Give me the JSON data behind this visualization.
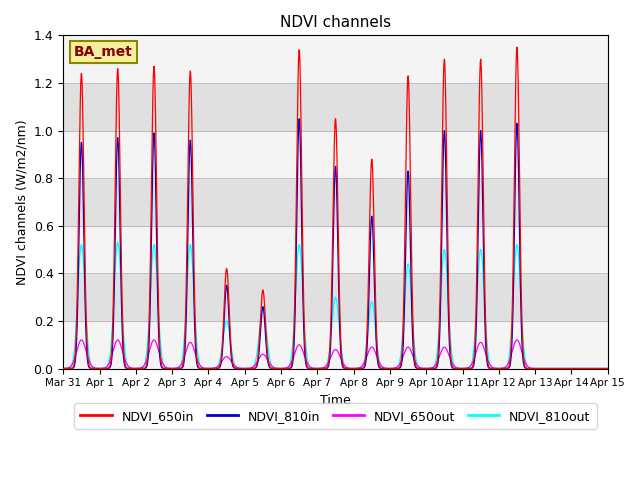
{
  "title": "NDVI channels",
  "xlabel": "Time",
  "ylabel": "NDVI channels (W/m2/nm)",
  "ylim": [
    0,
    1.4
  ],
  "annotation": "BA_met",
  "legend_labels": [
    "NDVI_650in",
    "NDVI_810in",
    "NDVI_650out",
    "NDVI_810out"
  ],
  "line_colors": [
    "red",
    "#0000cc",
    "#ff00ff",
    "cyan"
  ],
  "plot_bg_color": "#e8e8e8",
  "band_color": "#d0d0d0",
  "day_peaks_650in": [
    1.24,
    1.26,
    1.27,
    1.25,
    0.42,
    0.33,
    1.34,
    1.05,
    0.88,
    1.23,
    1.3,
    1.3,
    1.35,
    0.0,
    0.0
  ],
  "day_peaks_810in": [
    0.95,
    0.97,
    0.99,
    0.96,
    0.35,
    0.26,
    1.05,
    0.85,
    0.64,
    0.83,
    1.0,
    1.0,
    1.03,
    0.0,
    0.0
  ],
  "day_peaks_650out": [
    0.12,
    0.12,
    0.12,
    0.11,
    0.05,
    0.06,
    0.1,
    0.08,
    0.09,
    0.09,
    0.09,
    0.11,
    0.12,
    0.0,
    0.0
  ],
  "day_peaks_810out": [
    0.52,
    0.53,
    0.52,
    0.52,
    0.2,
    0.25,
    0.52,
    0.3,
    0.28,
    0.44,
    0.5,
    0.5,
    0.52,
    0.0,
    0.0
  ],
  "sigma_650in": 0.07,
  "sigma_810in": 0.065,
  "sigma_650out": 0.13,
  "sigma_810out": 0.1,
  "n_days": 15,
  "samples_per_day": 200,
  "xtick_positions": [
    0,
    1,
    2,
    3,
    4,
    5,
    6,
    7,
    8,
    9,
    10,
    11,
    12,
    13,
    14,
    15
  ],
  "xtick_labels": [
    "Mar 31",
    "Apr 1",
    "Apr 2",
    "Apr 3",
    "Apr 4",
    "Apr 5",
    "Apr 6",
    "Apr 7",
    "Apr 8",
    "Apr 9",
    "Apr 10",
    "Apr 11",
    "Apr 12",
    "Apr 13",
    "Apr 14",
    "Apr 15"
  ]
}
